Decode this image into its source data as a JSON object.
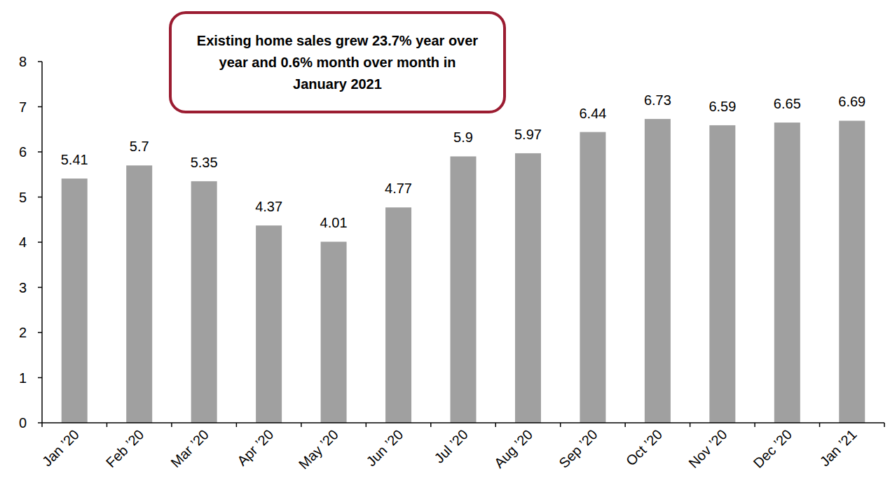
{
  "chart_data": {
    "type": "bar",
    "annotation": "Existing home sales grew 23.7% year over year and 0.6% month over month in January 2021",
    "categories": [
      "Jan ’20",
      "Feb ’20",
      "Mar ’20",
      "Apr ’20",
      "May ’20",
      "Jun ’20",
      "Jul ’20",
      "Aug ’20",
      "Sep ’20",
      "Oct ’20",
      "Nov ’20",
      "Dec ’20",
      "Jan ’21"
    ],
    "values": [
      5.41,
      5.7,
      5.35,
      4.37,
      4.01,
      4.77,
      5.9,
      5.97,
      6.44,
      6.73,
      6.59,
      6.65,
      6.69
    ],
    "color": "#a0a0a0",
    "ylim": [
      0,
      8
    ],
    "yticks": [
      0,
      1,
      2,
      3,
      4,
      5,
      6,
      7,
      8
    ],
    "grid": false,
    "data_labels": true
  }
}
